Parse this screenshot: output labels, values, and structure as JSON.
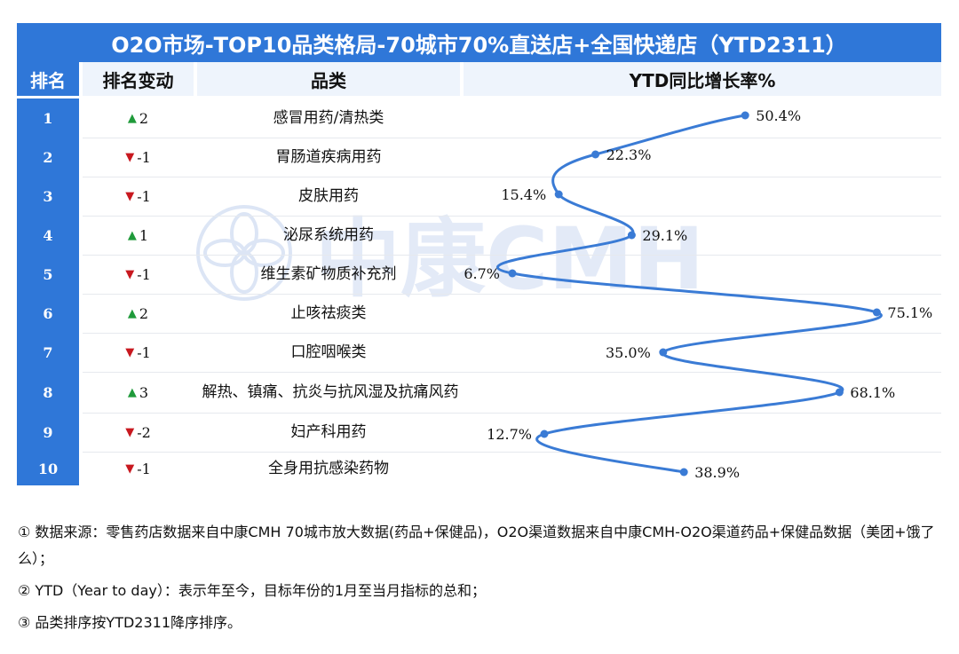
{
  "title": "O2O市场-TOP10品类格局-70城市70%直送店+全国快递店（YTD2311）",
  "headers": {
    "rank": "排名",
    "change": "排名变动",
    "category": "品类",
    "ytd": "YTD同比增长率%"
  },
  "watermark_text": "中康CMH",
  "colors": {
    "accent": "#2f77d8",
    "up": "#1f9a3a",
    "down": "#c8181f",
    "line": "#3a7bd5"
  },
  "rows": [
    {
      "rank": "1",
      "dir": "up",
      "arrow": "▲",
      "change": "2",
      "category": "感冒用药/清热类"
    },
    {
      "rank": "2",
      "dir": "down",
      "arrow": "▼",
      "change": "-1",
      "category": "胃肠道疾病用药"
    },
    {
      "rank": "3",
      "dir": "down",
      "arrow": "▼",
      "change": "-1",
      "category": "皮肤用药"
    },
    {
      "rank": "4",
      "dir": "up",
      "arrow": "▲",
      "change": "1",
      "category": "泌尿系统用药"
    },
    {
      "rank": "5",
      "dir": "down",
      "arrow": "▼",
      "change": "-1",
      "category": "维生素矿物质补充剂"
    },
    {
      "rank": "6",
      "dir": "up",
      "arrow": "▲",
      "change": "2",
      "category": "止咳祛痰类"
    },
    {
      "rank": "7",
      "dir": "down",
      "arrow": "▼",
      "change": "-1",
      "category": "口腔咽喉类"
    },
    {
      "rank": "8",
      "dir": "up",
      "arrow": "▲",
      "change": "3",
      "category": "解热、镇痛、抗炎与抗风湿及抗痛风药"
    },
    {
      "rank": "9",
      "dir": "down",
      "arrow": "▼",
      "change": "-2",
      "category": "妇产科用药"
    },
    {
      "rank": "10",
      "dir": "down",
      "arrow": "▼",
      "change": "-1",
      "category": "全身用抗感染药物"
    }
  ],
  "chart_data": {
    "type": "line",
    "title": "YTD同比增长率%",
    "categories": [
      "感冒用药/清热类",
      "胃肠道疾病用药",
      "皮肤用药",
      "泌尿系统用药",
      "维生素矿物质补充剂",
      "止咳祛痰类",
      "口腔咽喉类",
      "解热、镇痛、抗炎与抗风湿及抗痛风药",
      "妇产科用药",
      "全身用抗感染药物"
    ],
    "values": [
      50.4,
      22.3,
      15.4,
      29.1,
      6.7,
      75.1,
      35.0,
      68.1,
      12.7,
      38.9
    ],
    "labels": [
      "50.4%",
      "22.3%",
      "15.4%",
      "29.1%",
      "6.7%",
      "75.1%",
      "35.0%",
      "68.1%",
      "12.7%",
      "38.9%"
    ],
    "orientation": "horizontal-values-vertical-categories",
    "smooth": true
  },
  "notes": [
    "① 数据来源：零售药店数据来自中康CMH 70城市放大数据(药品+保健品)，O2O渠道数据来自中康CMH-O2O渠道药品+保健品数据（美团+饿了么）；",
    "② YTD（Year to day）：表示年至今，目标年份的1月至当月指标的总和；",
    "③ 品类排序按YTD2311降序排序。"
  ]
}
